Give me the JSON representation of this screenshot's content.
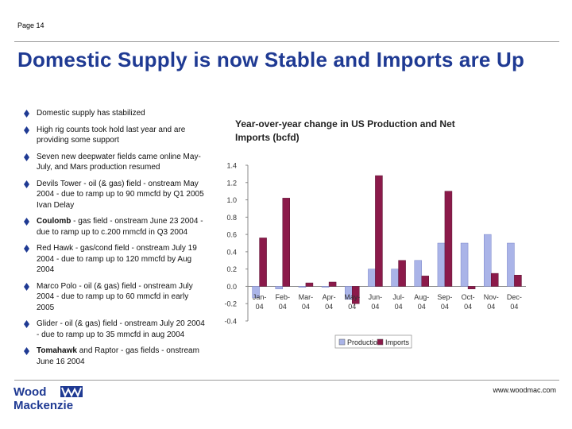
{
  "page": {
    "label": "Page 14",
    "website": "www.woodmac.com"
  },
  "title": "Domestic Supply is now Stable and Imports are Up",
  "logo": {
    "line1": "Wood",
    "line2": "Mackenzie"
  },
  "bullets": [
    {
      "bold": "",
      "text": "Domestic supply has stabilized"
    },
    {
      "bold": "",
      "text": "High rig counts took hold last year and are providing some support"
    },
    {
      "bold": "",
      "text": "Seven new deepwater fields came online May-July, and Mars production resumed"
    },
    {
      "bold": "",
      "text": "Devils Tower - oil (& gas) field - onstream May 2004 - due to ramp up to 90 mmcfd by Q1 2005 Ivan Delay"
    },
    {
      "bold": "Coulomb",
      "text": " - gas field - onstream June 23 2004 - due to ramp up to c.200 mmcfd in Q3 2004"
    },
    {
      "bold": "",
      "text": "Red Hawk - gas/cond field - onstream July 19 2004 - due to ramp up to 120 mmcfd by Aug 2004"
    },
    {
      "bold": "",
      "text": "Marco Polo - oil (& gas) field - onstream July 2004 - due to ramp up to 60 mmcfd in early 2005"
    },
    {
      "bold": "",
      "text": "Glider - oil (& gas) field - onstream July 20 2004 - due to ramp up to 35 mmcfd in aug 2004"
    },
    {
      "bold": "Tomahawk",
      "text": " and Raptor - gas fields - onstream June 16 2004"
    }
  ],
  "colors": {
    "title": "#1f3a93",
    "bullet": "#1f3a93",
    "production": "#aab4e8",
    "imports": "#8b1a4a"
  },
  "chart_data": {
    "type": "bar",
    "title": "Year-over-year change in US Production and Net Imports (bcfd)",
    "categories": [
      "Jan-04",
      "Feb-04",
      "Mar-04",
      "Apr-04",
      "May-04",
      "Jun-04",
      "Jul-04",
      "Aug-04",
      "Sep-04",
      "Oct-04",
      "Nov-04",
      "Dec-04"
    ],
    "category_labels": [
      [
        "Jan-",
        "04"
      ],
      [
        "Feb-",
        "04"
      ],
      [
        "Mar-",
        "04"
      ],
      [
        "Apr-",
        "04"
      ],
      [
        "May-",
        "04"
      ],
      [
        "Jun-",
        "04"
      ],
      [
        "Jul-",
        "04"
      ],
      [
        "Aug-",
        "04"
      ],
      [
        "Sep-",
        "04"
      ],
      [
        "Oct-",
        "04"
      ],
      [
        "Nov-",
        "04"
      ],
      [
        "Dec-",
        "04"
      ]
    ],
    "series": [
      {
        "name": "Production",
        "color": "#aab4e8",
        "values": [
          -0.13,
          -0.03,
          -0.01,
          -0.01,
          -0.15,
          0.2,
          0.2,
          0.3,
          0.5,
          0.5,
          0.6,
          0.5
        ]
      },
      {
        "name": "Imports",
        "color": "#8b1a4a",
        "values": [
          0.56,
          1.02,
          0.04,
          0.05,
          -0.2,
          1.28,
          0.3,
          0.12,
          1.1,
          -0.03,
          0.15,
          0.13
        ]
      }
    ],
    "ylim": [
      -0.4,
      1.4
    ],
    "yticks": [
      "-0.4",
      "-0.2",
      "0.0",
      "0.2",
      "0.4",
      "0.6",
      "0.8",
      "1.0",
      "1.2",
      "1.4"
    ],
    "legend": "bottom-right"
  }
}
